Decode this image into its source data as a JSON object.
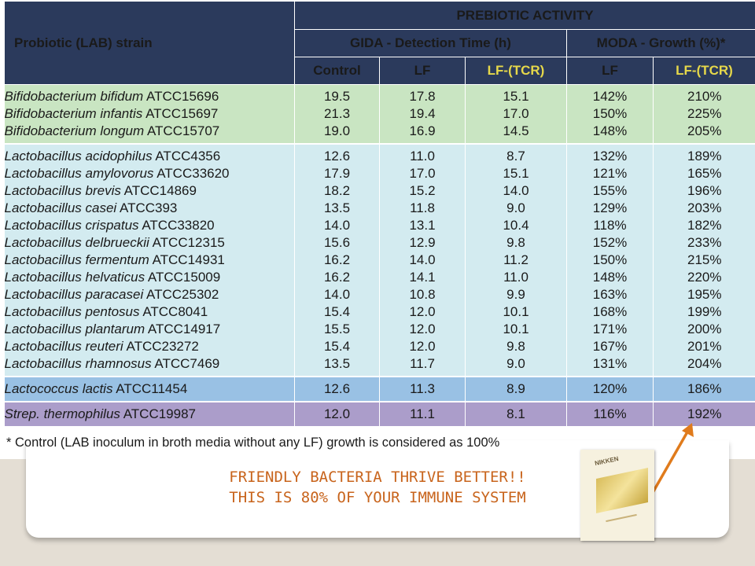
{
  "table": {
    "header": {
      "strain_col": "Probiotic (LAB) strain",
      "group_title": "PREBIOTIC ACTIVITY",
      "gida_title": "GIDA - Detection Time (h)",
      "moda_title": "MODA - Growth (%)*",
      "sub": [
        "Control",
        "LF",
        "LF-(TCR)",
        "LF",
        "LF-(TCR)"
      ]
    },
    "rows": [
      {
        "group": "bifido",
        "species": "Bifidobacterium bifidum",
        "code": "ATCC15696",
        "values": [
          "19.5",
          "17.8",
          "15.1",
          "142%",
          "210%"
        ]
      },
      {
        "group": "bifido",
        "species": "Bifidobacterium infantis",
        "code": "ATCC15697",
        "values": [
          "21.3",
          "19.4",
          "17.0",
          "150%",
          "225%"
        ]
      },
      {
        "group": "bifido",
        "species": "Bifidobacterium longum",
        "code": "ATCC15707",
        "values": [
          "19.0",
          "16.9",
          "14.5",
          "148%",
          "205%"
        ]
      },
      {
        "group": "lacto",
        "species": "Lactobacillus acidophilus",
        "code": "ATCC4356",
        "values": [
          "12.6",
          "11.0",
          "8.7",
          "132%",
          "189%"
        ]
      },
      {
        "group": "lacto",
        "species": "Lactobacillus amylovorus",
        "code": "ATCC33620",
        "values": [
          "17.9",
          "17.0",
          "15.1",
          "121%",
          "165%"
        ]
      },
      {
        "group": "lacto",
        "species": "Lactobacillus brevis",
        "code": "ATCC14869",
        "values": [
          "18.2",
          "15.2",
          "14.0",
          "155%",
          "196%"
        ]
      },
      {
        "group": "lacto",
        "species": "Lactobacillus casei",
        "code": "ATCC393",
        "values": [
          "13.5",
          "11.8",
          "9.0",
          "129%",
          "203%"
        ]
      },
      {
        "group": "lacto",
        "species": "Lactobacillus crispatus",
        "code": "ATCC33820",
        "values": [
          "14.0",
          "13.1",
          "10.4",
          "118%",
          "182%"
        ]
      },
      {
        "group": "lacto",
        "species": "Lactobacillus delbrueckii",
        "code": "ATCC12315",
        "values": [
          "15.6",
          "12.9",
          "9.8",
          "152%",
          "233%"
        ]
      },
      {
        "group": "lacto",
        "species": "Lactobacillus fermentum",
        "code": "ATCC14931",
        "values": [
          "16.2",
          "14.0",
          "11.2",
          "150%",
          "215%"
        ]
      },
      {
        "group": "lacto",
        "species": "Lactobacillus helvaticus",
        "code": "ATCC15009",
        "values": [
          "16.2",
          "14.1",
          "11.0",
          "148%",
          "220%"
        ]
      },
      {
        "group": "lacto",
        "species": "Lactobacillus paracasei",
        "code": "ATCC25302",
        "values": [
          "14.0",
          "10.8",
          "9.9",
          "163%",
          "195%"
        ]
      },
      {
        "group": "lacto",
        "species": "Lactobacillus pentosus",
        "code": "ATCC8041",
        "values": [
          "15.4",
          "12.0",
          "10.1",
          "168%",
          "199%"
        ]
      },
      {
        "group": "lacto",
        "species": "Lactobacillus plantarum",
        "code": "ATCC14917",
        "values": [
          "15.5",
          "12.0",
          "10.1",
          "171%",
          "200%"
        ]
      },
      {
        "group": "lacto",
        "species": "Lactobacillus reuteri",
        "code": "ATCC23272",
        "values": [
          "15.4",
          "12.0",
          "9.8",
          "167%",
          "201%"
        ]
      },
      {
        "group": "lacto",
        "species": "Lactobacillus rhamnosus",
        "code": "ATCC7469",
        "values": [
          "13.5",
          "11.7",
          "9.0",
          "131%",
          "204%"
        ]
      },
      {
        "group": "lactococ",
        "species": "Lactococcus lactis",
        "code": "ATCC11454",
        "values": [
          "12.6",
          "11.3",
          "8.9",
          "120%",
          "186%"
        ]
      },
      {
        "group": "strep",
        "species": "Strep. thermophilus",
        "code": "ATCC19987",
        "values": [
          "12.0",
          "11.1",
          "8.1",
          "116%",
          "192%"
        ]
      }
    ]
  },
  "footnote": "* Control (LAB inoculum in broth media without any LF) growth is considered as 100%",
  "tagline": {
    "line1": "FRIENDLY BACTERIA THRIVE BETTER!!",
    "line2": "THIS IS 80% OF YOUR IMMUNE SYSTEM"
  },
  "product": {
    "brand": "NIKKEN"
  },
  "colors": {
    "header_bg": "#2b3a5c",
    "header_highlight": "#e6d84a",
    "bifido_bg": "#c9e5c2",
    "lacto_bg": "#d3ebf0",
    "lactococcus_bg": "#99c1e4",
    "strep_bg": "#ab9dca",
    "tagline": "#c8641c",
    "arrow": "#e07b1c"
  }
}
